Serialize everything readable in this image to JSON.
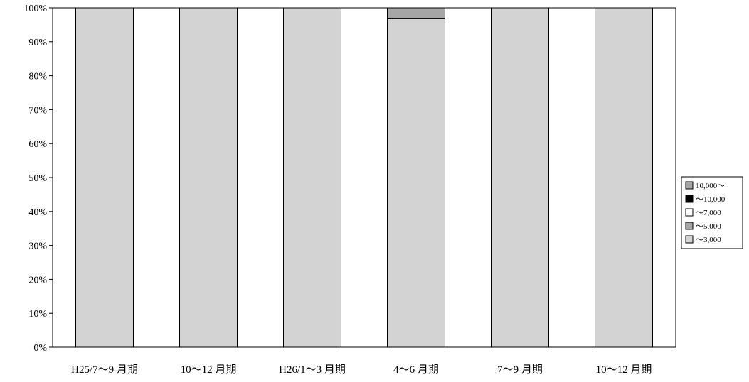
{
  "chart_data": {
    "type": "bar",
    "stacked": true,
    "percent": true,
    "categories": [
      "H25/7～9 月期",
      "10～12 月期",
      "H26/1～3 月期",
      "4～6 月期",
      "7～9 月期",
      "10～12 月期"
    ],
    "series": [
      {
        "name": "～3,000",
        "color": "#d3d3d3",
        "values": [
          100,
          100,
          100,
          96.8,
          100,
          100
        ]
      },
      {
        "name": "～5,000",
        "color": "#a6a6a6",
        "values": [
          0,
          0,
          0,
          3.2,
          0,
          0
        ]
      },
      {
        "name": "～7,000",
        "color": "#ffffff",
        "values": [
          0,
          0,
          0,
          0,
          0,
          0
        ]
      },
      {
        "name": "～10,000",
        "color": "#000000",
        "values": [
          0,
          0,
          0,
          0,
          0,
          0
        ]
      },
      {
        "name": "10,000～",
        "color": "#a6a6a6",
        "values": [
          0,
          0,
          0,
          0,
          0,
          0
        ]
      }
    ],
    "legend_order": [
      4,
      3,
      2,
      1,
      0
    ],
    "y_ticks": [
      "0%",
      "10%",
      "20%",
      "30%",
      "40%",
      "50%",
      "60%",
      "70%",
      "80%",
      "90%",
      "100%"
    ],
    "ylim": [
      0,
      100
    ],
    "grid": false,
    "legend_position": "right"
  }
}
